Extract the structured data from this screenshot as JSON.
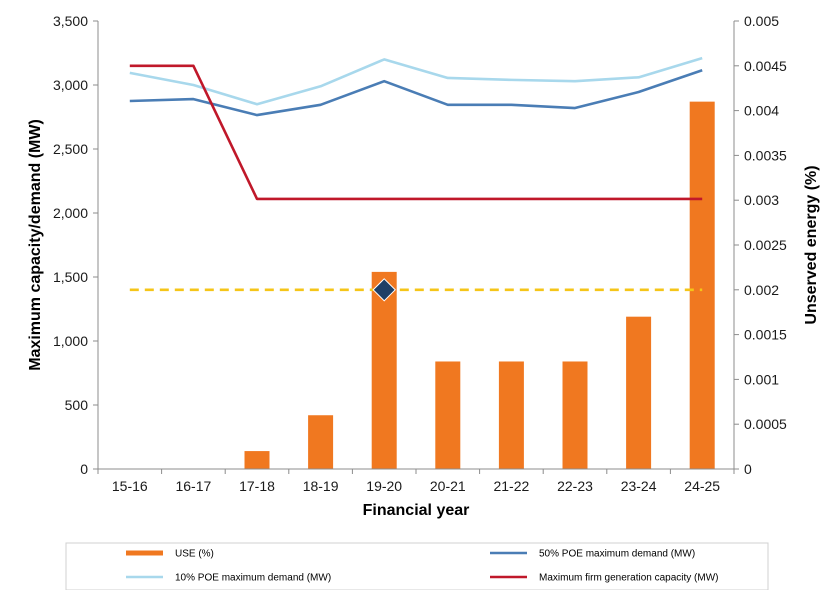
{
  "chart_data": {
    "type": "bar",
    "xlabel": "Financial year",
    "ylabel_left": "Maximum capacity/demand (MW)",
    "ylabel_right": "Unserved energy (%)",
    "categories": [
      "15-16",
      "16-17",
      "17-18",
      "18-19",
      "19-20",
      "20-21",
      "21-22",
      "22-23",
      "23-24",
      "24-25"
    ],
    "ylim_left": [
      0,
      3500
    ],
    "yticks_left": [
      0,
      500,
      1000,
      1500,
      2000,
      2500,
      3000,
      3500
    ],
    "yticklabels_left": [
      "0",
      "500",
      "1,000",
      "1,500",
      "2,000",
      "2,500",
      "3,000",
      "3,500"
    ],
    "ylim_right": [
      0,
      0.005
    ],
    "yticks_right": [
      0,
      0.0005,
      0.001,
      0.0015,
      0.002,
      0.0025,
      0.003,
      0.0035,
      0.004,
      0.0045,
      0.005
    ],
    "yticklabels_right": [
      "0",
      "0.0005",
      "0.001",
      "0.0015",
      "0.002",
      "0.0025",
      "0.003",
      "0.0035",
      "0.004",
      "0.0045",
      "0.005"
    ],
    "series": [
      {
        "name": "USE (%)",
        "kind": "bar",
        "axis": "right",
        "color": "#f07820",
        "values": [
          0,
          0,
          0.0002,
          0.0006,
          0.0022,
          0.0012,
          0.0012,
          0.0012,
          0.0017,
          0.0041
        ]
      },
      {
        "name": "50% POE maximum demand (MW)",
        "kind": "line",
        "axis": "left",
        "color": "#4a7db5",
        "values": [
          2875,
          2890,
          2765,
          2845,
          3030,
          2845,
          2845,
          2820,
          2945,
          3115
        ]
      },
      {
        "name": "10% POE maximum demand (MW)",
        "kind": "line",
        "axis": "left",
        "color": "#a8d8ec",
        "values": [
          3095,
          3000,
          2850,
          2990,
          3200,
          3055,
          3040,
          3030,
          3060,
          3210
        ]
      },
      {
        "name": "Maximum firm generation capacity (MW)",
        "kind": "line",
        "axis": "left",
        "color": "#c0182a",
        "values": [
          3150,
          3150,
          2110,
          2110,
          2110,
          2110,
          2110,
          2110,
          2110,
          2110
        ]
      }
    ],
    "reference_line": {
      "axis": "right",
      "value": 0.002,
      "color": "#f5c518",
      "style": "dashed"
    },
    "marker": {
      "category": "19-20",
      "axis": "right",
      "value": 0.002,
      "shape": "diamond",
      "color": "#1f3f66"
    },
    "legend": {
      "placement": "bottom",
      "items": [
        {
          "label": "USE (%)",
          "color": "#f07820"
        },
        {
          "label": "50% POE maximum demand (MW)",
          "color": "#4a7db5"
        },
        {
          "label": "10% POE maximum demand (MW)",
          "color": "#a8d8ec"
        },
        {
          "label": "Maximum firm generation capacity (MW)",
          "color": "#c0182a"
        }
      ]
    }
  }
}
